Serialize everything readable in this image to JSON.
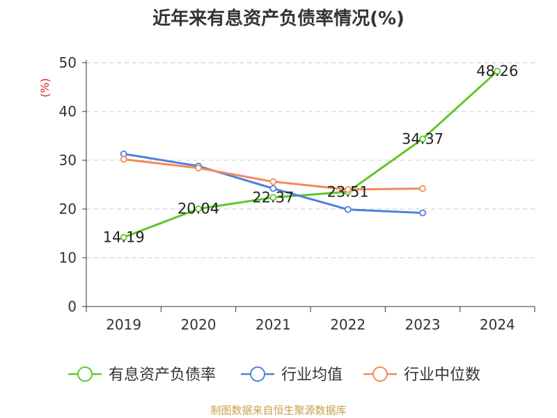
{
  "chart_data": {
    "type": "line",
    "title": "近年来有息资产负债率情况(%)",
    "ylabel": "(%)",
    "categories": [
      "2019",
      "2020",
      "2021",
      "2022",
      "2023",
      "2024"
    ],
    "ylim": [
      0,
      50
    ],
    "yticks": [
      0,
      10,
      20,
      30,
      40,
      50
    ],
    "grid": true,
    "legend_position": "bottom",
    "series": [
      {
        "name": "有息资产负债率",
        "color": "#5cc72a",
        "values": [
          14.19,
          20.04,
          22.37,
          23.51,
          34.37,
          48.26
        ],
        "labels": [
          "14.19",
          "20.04",
          "22.37",
          "23.51",
          "34.37",
          "48.26"
        ]
      },
      {
        "name": "行业均值",
        "color": "#4f7fdc",
        "values": [
          31.3,
          28.8,
          24.2,
          19.9,
          19.2,
          null
        ]
      },
      {
        "name": "行业中位数",
        "color": "#f5895a",
        "values": [
          30.2,
          28.4,
          25.6,
          24.0,
          24.2,
          null
        ]
      }
    ]
  },
  "source": "制图数据来自恒生聚源数据库"
}
